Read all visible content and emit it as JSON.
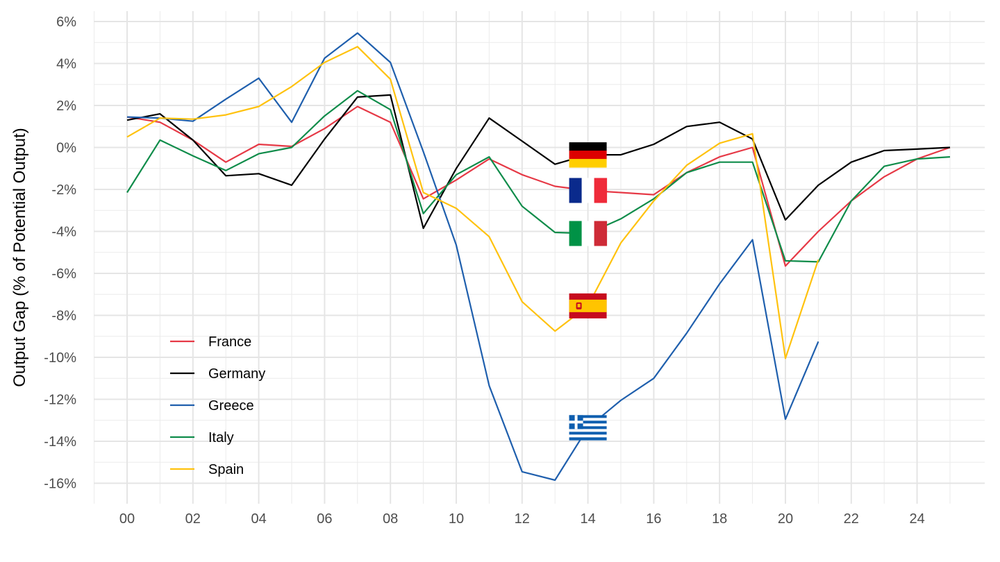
{
  "chart_data": {
    "type": "line",
    "ylabel": "Output Gap (% of Potential Output)",
    "xlabel": "",
    "xlim": [
      -1,
      26
    ],
    "ylim": [
      -16.8,
      6.3
    ],
    "x_ticks": [
      0,
      2,
      4,
      6,
      8,
      10,
      12,
      14,
      16,
      18,
      20,
      22,
      24
    ],
    "x_tick_labels": [
      "00",
      "02",
      "04",
      "06",
      "08",
      "10",
      "12",
      "14",
      "16",
      "18",
      "20",
      "22",
      "24"
    ],
    "y_ticks": [
      6,
      4,
      2,
      0,
      -2,
      -4,
      -6,
      -8,
      -10,
      -12,
      -14,
      -16
    ],
    "y_tick_labels": [
      "6%",
      "4%",
      "2%",
      "0%",
      "-2%",
      "-4%",
      "-6%",
      "-8%",
      "-10%",
      "-12%",
      "-14%",
      "-16%"
    ],
    "grid": true,
    "legend_position": "bottom-left",
    "series": [
      {
        "name": "France",
        "color": "#E63946",
        "x": [
          0,
          1,
          2,
          3,
          4,
          5,
          6,
          7,
          8,
          9,
          10,
          11,
          12,
          13,
          14,
          15,
          16,
          17,
          18,
          19,
          20,
          21,
          22,
          23,
          24,
          25
        ],
        "values": [
          1.45,
          1.2,
          0.35,
          -0.7,
          0.15,
          0.05,
          0.9,
          1.95,
          1.2,
          -2.45,
          -1.55,
          -0.55,
          -1.3,
          -1.85,
          -2.05,
          -2.15,
          -2.25,
          -1.2,
          -0.45,
          0.0,
          -5.65,
          -4.0,
          -2.55,
          -1.4,
          -0.55,
          0.0
        ],
        "flag": "fr",
        "flag_x": 14,
        "flag_y": -2.05
      },
      {
        "name": "Germany",
        "color": "#000000",
        "x": [
          0,
          1,
          2,
          3,
          4,
          5,
          6,
          7,
          8,
          9,
          10,
          11,
          12,
          13,
          14,
          15,
          16,
          17,
          18,
          19,
          20,
          21,
          22,
          23,
          24,
          25
        ],
        "values": [
          1.3,
          1.6,
          0.35,
          -1.35,
          -1.25,
          -1.8,
          0.4,
          2.4,
          2.5,
          -3.85,
          -1.0,
          1.4,
          0.3,
          -0.8,
          -0.35,
          -0.35,
          0.15,
          1.0,
          1.2,
          0.4,
          -3.45,
          -1.8,
          -0.7,
          -0.15,
          -0.08,
          0.0
        ],
        "flag": "de",
        "flag_x": 14,
        "flag_y": -0.35
      },
      {
        "name": "Greece",
        "color": "#1F5FAD",
        "x": [
          0,
          1,
          2,
          3,
          4,
          5,
          6,
          7,
          8,
          9,
          10,
          11,
          12,
          13,
          14,
          15,
          16,
          17,
          18,
          19,
          20,
          21
        ],
        "values": [
          1.45,
          1.4,
          1.25,
          2.3,
          3.3,
          1.2,
          4.25,
          5.45,
          4.05,
          -0.2,
          -4.65,
          -11.35,
          -15.45,
          -15.85,
          -13.35,
          -12.05,
          -11.0,
          -8.85,
          -6.5,
          -4.4,
          -12.95,
          -9.25
        ],
        "flag": "gr",
        "flag_x": 14,
        "flag_y": -13.35
      },
      {
        "name": "Italy",
        "color": "#0F8C4A",
        "x": [
          0,
          1,
          2,
          3,
          4,
          5,
          6,
          7,
          8,
          9,
          10,
          11,
          12,
          13,
          14,
          15,
          16,
          17,
          18,
          19,
          20,
          21,
          22,
          23,
          24,
          25
        ],
        "values": [
          -2.15,
          0.35,
          -0.4,
          -1.1,
          -0.3,
          0.0,
          1.5,
          2.7,
          1.8,
          -3.15,
          -1.3,
          -0.45,
          -2.8,
          -4.05,
          -4.1,
          -3.4,
          -2.45,
          -1.2,
          -0.7,
          -0.7,
          -5.4,
          -5.45,
          -2.55,
          -0.9,
          -0.55,
          -0.45
        ],
        "flag": "it",
        "flag_x": 14,
        "flag_y": -4.1
      },
      {
        "name": "Spain",
        "color": "#FFC20E",
        "x": [
          0,
          1,
          2,
          3,
          4,
          5,
          6,
          7,
          8,
          9,
          10,
          11,
          12,
          13,
          14,
          15,
          16,
          17,
          18,
          19,
          20,
          21
        ],
        "values": [
          0.5,
          1.4,
          1.35,
          1.55,
          1.95,
          2.9,
          4.05,
          4.8,
          3.25,
          -2.15,
          -2.9,
          -4.25,
          -7.35,
          -8.75,
          -7.55,
          -4.55,
          -2.55,
          -0.85,
          0.2,
          0.65,
          -10.05,
          -5.35
        ],
        "flag": "es",
        "flag_x": 14,
        "flag_y": -7.55
      }
    ]
  }
}
